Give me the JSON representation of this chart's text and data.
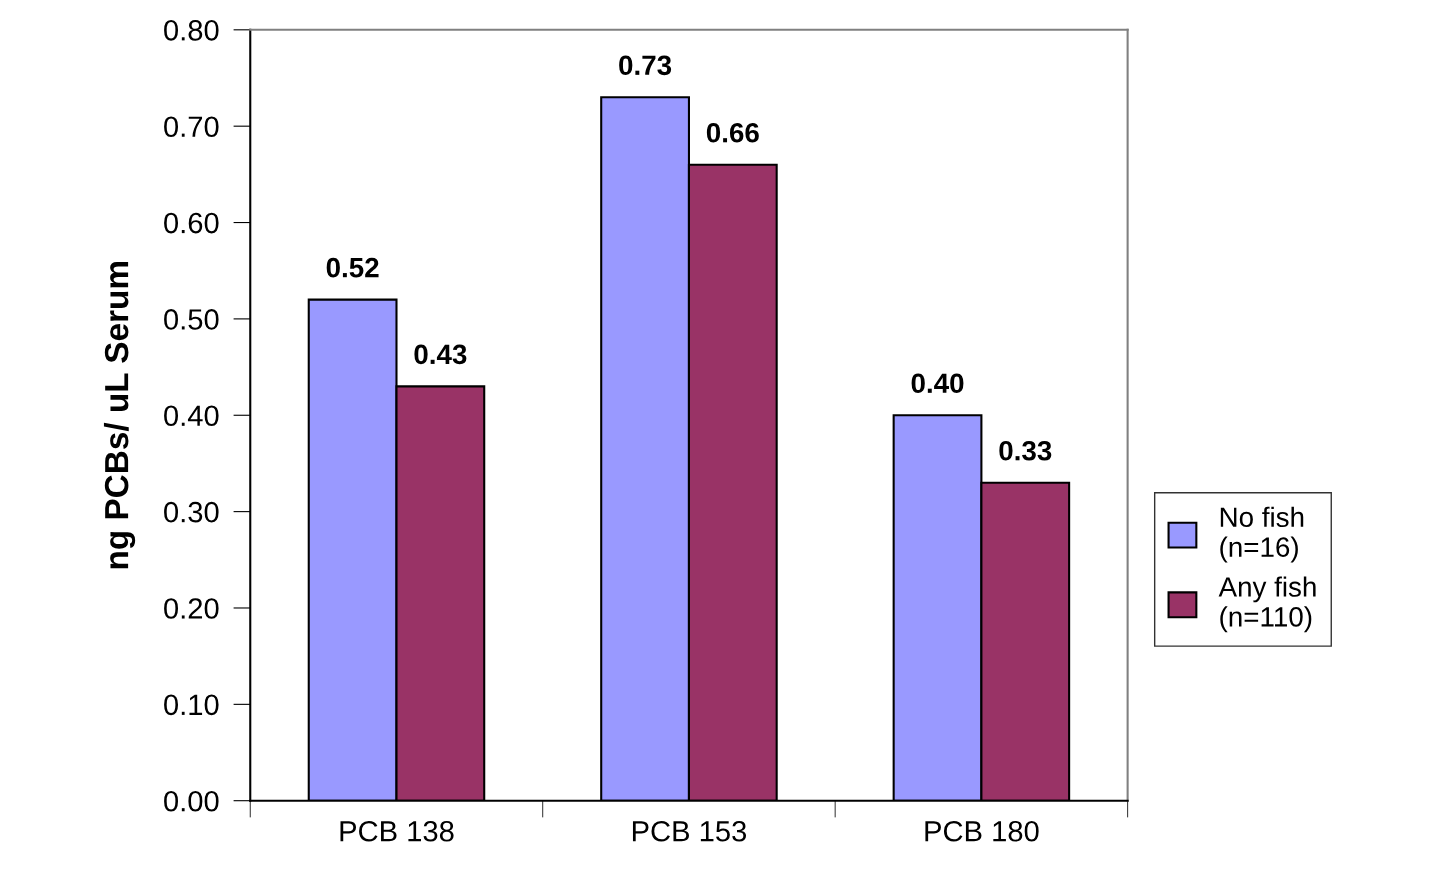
{
  "chart_data": {
    "type": "bar",
    "ylabel": "ng PCBs/ uL Serum",
    "categories": [
      "PCB 138",
      "PCB 153",
      "PCB 180"
    ],
    "series": [
      {
        "name": "No fish\n(n=16)",
        "color": "#9999ff",
        "values": [
          0.52,
          0.73,
          0.4
        ],
        "value_labels": [
          "0.52",
          "0.73",
          "0.40"
        ]
      },
      {
        "name": "Any fish\n(n=110)",
        "color": "#993366",
        "values": [
          0.43,
          0.66,
          0.33
        ],
        "value_labels": [
          "0.43",
          "0.66",
          "0.33"
        ]
      }
    ],
    "ylim": [
      0,
      0.8
    ],
    "yticks": [
      {
        "value": 0,
        "label": "0.00"
      },
      {
        "value": 0.1,
        "label": "0.10"
      },
      {
        "value": 0.2,
        "label": "0.20"
      },
      {
        "value": 0.3,
        "label": "0.30"
      },
      {
        "value": 0.4,
        "label": "0.40"
      },
      {
        "value": 0.5,
        "label": "0.50"
      },
      {
        "value": 0.6,
        "label": "0.60"
      },
      {
        "value": 0.7,
        "label": "0.70"
      },
      {
        "value": 0.8,
        "label": "0.80"
      }
    ],
    "grid": false,
    "legend": "right"
  }
}
